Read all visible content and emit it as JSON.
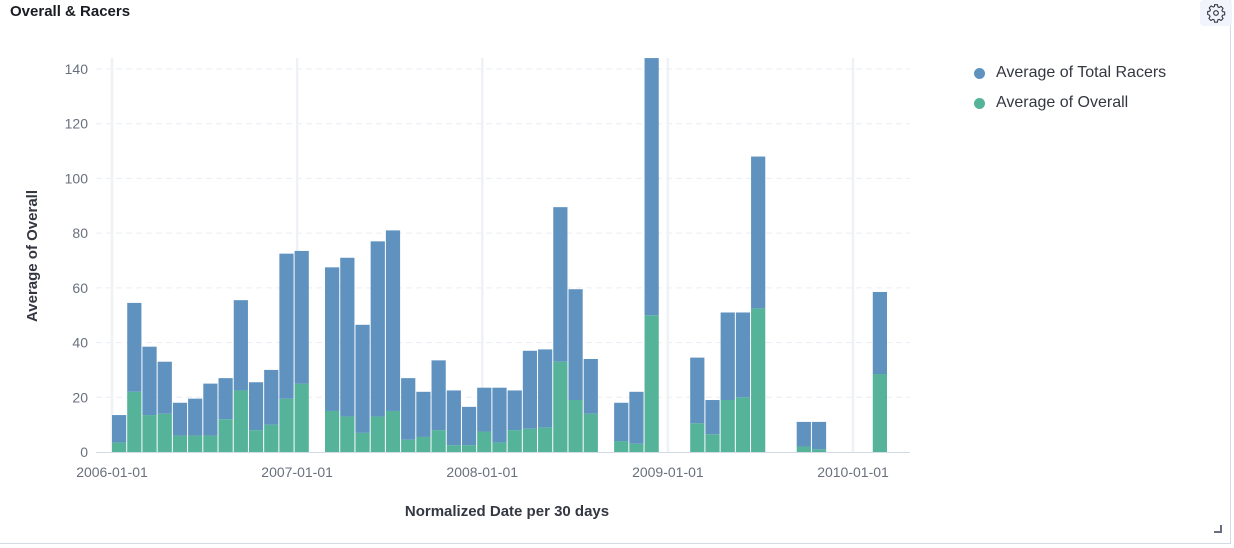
{
  "panel": {
    "title": "Overall & Racers",
    "settings_icon": "gear-icon"
  },
  "chart_data": {
    "type": "bar",
    "stacked": true,
    "xlabel": "Normalized Date per 30 days",
    "ylabel": "Average of Overall",
    "ylim": [
      0,
      145
    ],
    "yticks": [
      0,
      20,
      40,
      60,
      80,
      100,
      120,
      140
    ],
    "x_ticks": [
      "2006-01-01",
      "2007-01-01",
      "2008-01-01",
      "2009-01-01",
      "2010-01-01"
    ],
    "grid": true,
    "legend_position": "right",
    "x": [
      "2006-01-01",
      "2006-01-31",
      "2006-03-02",
      "2006-04-01",
      "2006-05-01",
      "2006-05-31",
      "2006-06-30",
      "2006-07-30",
      "2006-08-29",
      "2006-09-28",
      "2006-10-28",
      "2006-11-27",
      "2006-12-27",
      "2007-01-26",
      "2007-02-25",
      "2007-03-27",
      "2007-04-26",
      "2007-05-26",
      "2007-06-25",
      "2007-07-25",
      "2007-08-24",
      "2007-09-23",
      "2007-10-23",
      "2007-11-22",
      "2007-12-22",
      "2008-01-21",
      "2008-02-20",
      "2008-03-21",
      "2008-04-20",
      "2008-05-20",
      "2008-06-19",
      "2008-07-19",
      "2008-08-18",
      "2008-09-17",
      "2008-10-17",
      "2008-11-16",
      "2008-12-16",
      "2009-01-15",
      "2009-02-14",
      "2009-03-16",
      "2009-04-15",
      "2009-05-15",
      "2009-06-14",
      "2009-07-14",
      "2009-08-13",
      "2009-09-12",
      "2009-10-12",
      "2009-11-11",
      "2009-12-11",
      "2010-01-10",
      "2010-02-09",
      "2010-03-11"
    ],
    "series": [
      {
        "name": "Average of Overall",
        "color": "#54b399",
        "values": [
          3.5,
          22,
          13.5,
          14,
          6,
          6,
          6,
          12,
          22.5,
          8,
          10,
          19.5,
          25,
          null,
          15,
          13,
          7,
          13,
          15,
          4.5,
          5.5,
          8,
          2.5,
          2.5,
          7.5,
          3.5,
          8,
          8.5,
          9,
          33,
          19,
          14,
          null,
          4,
          3,
          50,
          null,
          null,
          10.5,
          6.5,
          19,
          20,
          52.5,
          null,
          null,
          2,
          1,
          null,
          null,
          null,
          28.5,
          null
        ]
      },
      {
        "name": "Average of Total Racers",
        "color": "#6092c0",
        "values": [
          10,
          32.5,
          25,
          19,
          12,
          13.5,
          19,
          15,
          33,
          17.5,
          20,
          53,
          48.5,
          null,
          52.5,
          58,
          39.5,
          64,
          66,
          22.5,
          16.5,
          25.5,
          20,
          14,
          16,
          20,
          14.5,
          28.5,
          28.5,
          56.5,
          40.5,
          20,
          null,
          14,
          19,
          94,
          null,
          null,
          24,
          12.5,
          32,
          31,
          55.5,
          null,
          null,
          9,
          10,
          null,
          null,
          null,
          30,
          null
        ]
      }
    ]
  },
  "legend": [
    {
      "label": "Average of Total Racers",
      "color": "#6092c0"
    },
    {
      "label": "Average of Overall",
      "color": "#54b399"
    }
  ]
}
